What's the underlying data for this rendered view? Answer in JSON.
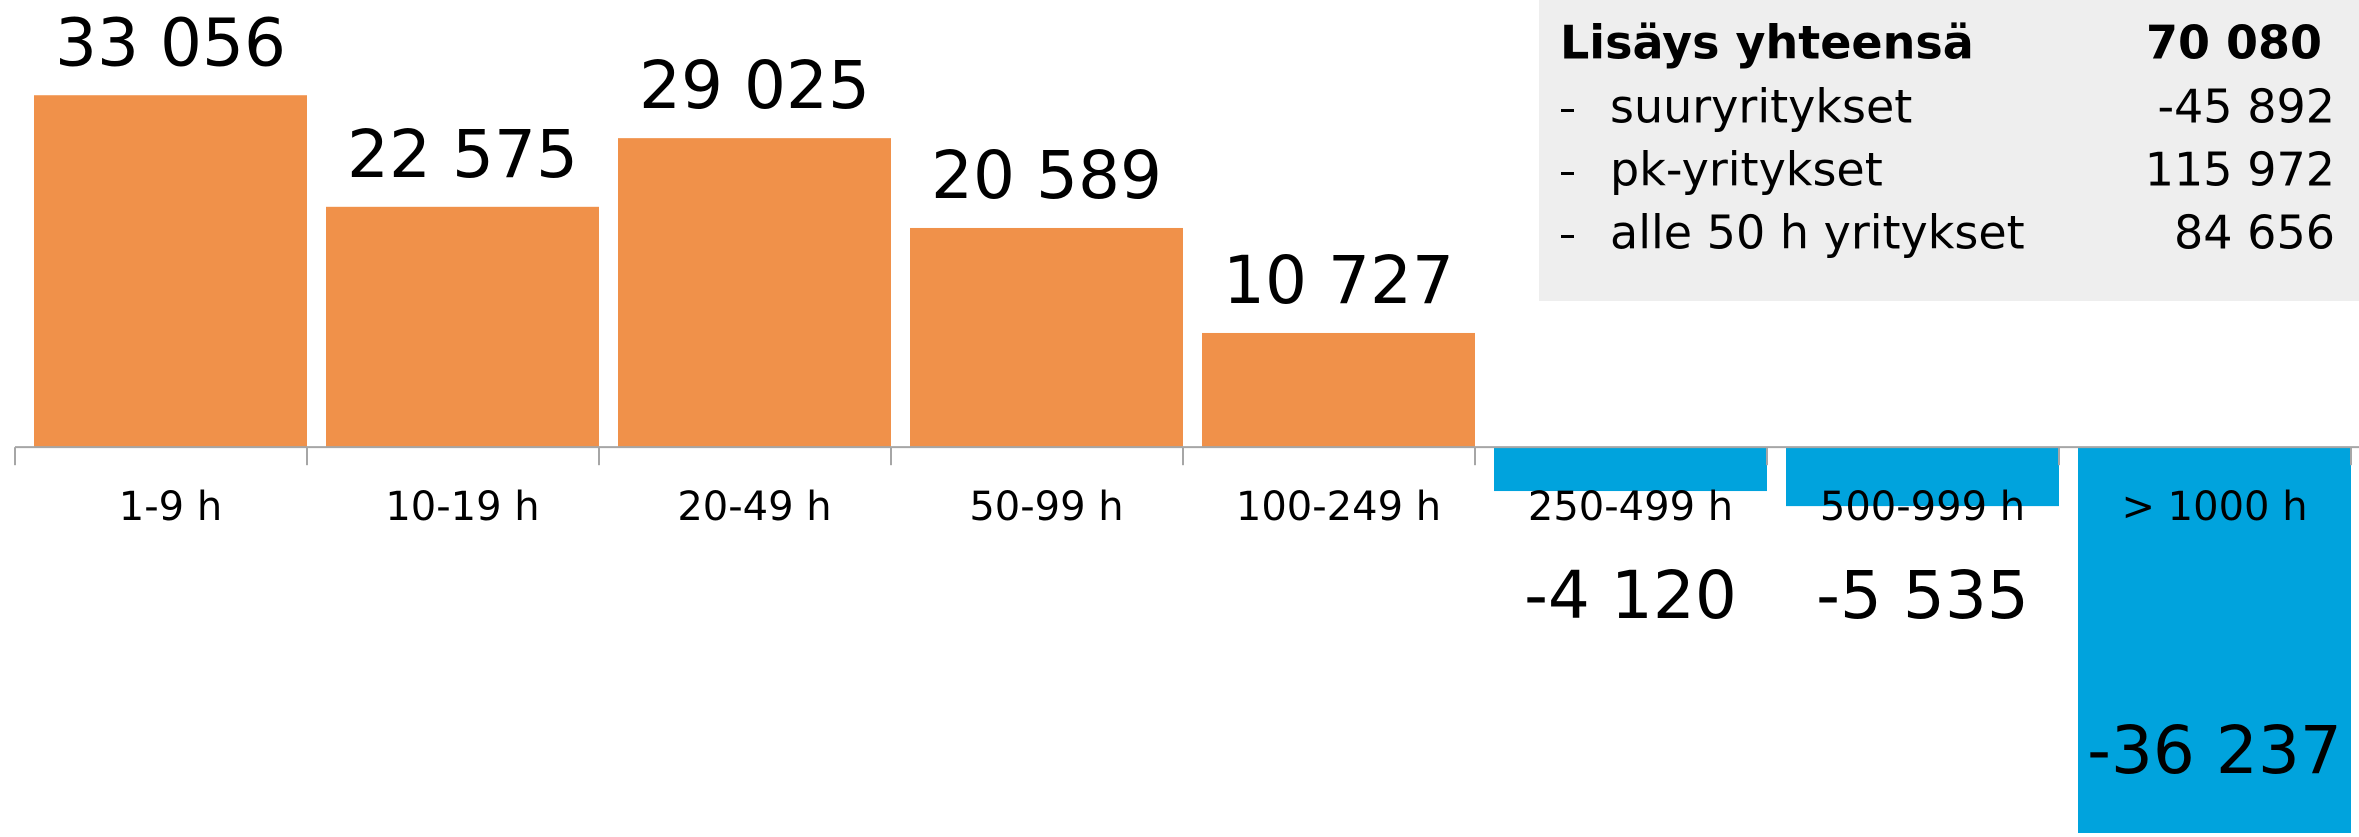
{
  "chart_data": {
    "type": "bar",
    "categories": [
      "1-9 h",
      "10-19 h",
      "20-49 h",
      "50-99 h",
      "100-249 h",
      "250-499 h",
      "500-999 h",
      "> 1000 h"
    ],
    "values": [
      33056,
      22575,
      29025,
      20589,
      10727,
      -4120,
      -5535,
      -36237
    ],
    "value_labels": [
      "33 056",
      "22 575",
      "29 025",
      "20 589",
      "10 727",
      "-4 120",
      "-5 535",
      "-36 237"
    ],
    "colors": [
      "#f0914a",
      "#f0914a",
      "#f0914a",
      "#f0914a",
      "#f0914a",
      "#00a3dd",
      "#00a3dd",
      "#00a3dd"
    ],
    "ylim": [
      -36237,
      42000
    ],
    "summary": {
      "title": "Lisäys yhteensä",
      "total": "70 080",
      "rows": [
        {
          "label": "suuryritykset",
          "value": "-45 892"
        },
        {
          "label": "pk-yritykset",
          "value": "115 972"
        },
        {
          "label": "alle 50 h yritykset",
          "value": "84 656"
        }
      ]
    }
  }
}
